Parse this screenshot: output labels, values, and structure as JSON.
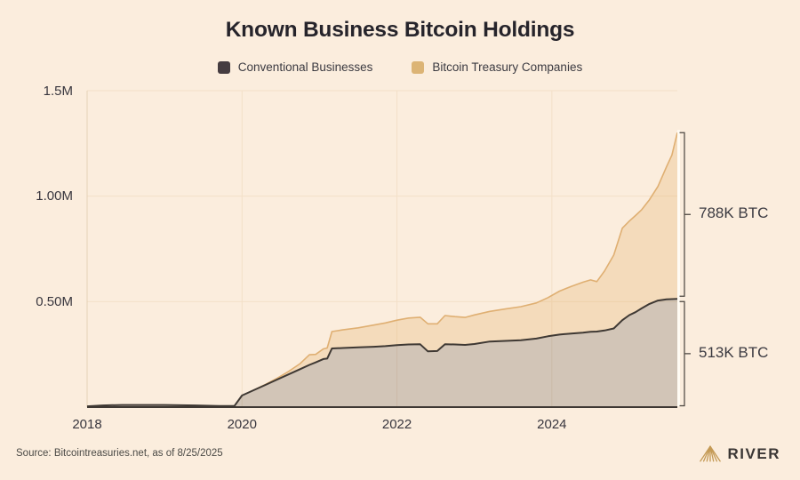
{
  "title": "Known Business Bitcoin Holdings",
  "legend": [
    {
      "label": "Conventional Businesses",
      "color": "#453C40"
    },
    {
      "label": "Bitcoin Treasury Companies",
      "color": "#DCB475"
    }
  ],
  "annotations": {
    "treasury": "788K BTC",
    "conventional": "513K BTC"
  },
  "footer": {
    "source": "Source: Bitcointreasuries.net, as of 8/25/2025",
    "brand": "RIVER"
  },
  "colors": {
    "background": "#FBEDDD",
    "gridline": "#F3E0C8",
    "axis_line": "#E6D2B6",
    "conventional_line": "#3E3833",
    "conventional_fill": "rgba(62,56,48,0.22)",
    "treasury_line": "#DFAF72",
    "treasury_fill": "rgba(228,172,100,0.28)",
    "bracket": "#4A443E",
    "brand_gold": "#C49A55",
    "title_text": "#26242B",
    "axis_text": "#38363E"
  },
  "chart_data": {
    "type": "area",
    "stacked": true,
    "title": "Known Business Bitcoin Holdings",
    "xlabel": "",
    "ylabel": "",
    "unit": "BTC",
    "values_unit": "thousand BTC",
    "x_range": [
      2018,
      2025.62
    ],
    "y_range_k": [
      0,
      1500
    ],
    "x_ticks": [
      2018,
      2020,
      2022,
      2024
    ],
    "x_tick_labels": [
      "2018",
      "2020",
      "2022",
      "2024"
    ],
    "y_ticks_k": [
      500,
      1000,
      1500
    ],
    "y_tick_labels": [
      "0.50M",
      "1.00M",
      "1.5M"
    ],
    "grid": true,
    "legend_position": "top",
    "x": [
      2018.0,
      2018.2,
      2018.45,
      2019.0,
      2019.4,
      2019.7,
      2019.9,
      2020.0,
      2020.15,
      2020.3,
      2020.45,
      2020.6,
      2020.75,
      2020.87,
      2020.95,
      2021.05,
      2021.1,
      2021.16,
      2021.3,
      2021.5,
      2021.7,
      2021.85,
      2022.0,
      2022.15,
      2022.3,
      2022.4,
      2022.52,
      2022.62,
      2022.75,
      2022.88,
      2023.0,
      2023.2,
      2023.4,
      2023.6,
      2023.8,
      2023.95,
      2024.1,
      2024.25,
      2024.4,
      2024.5,
      2024.58,
      2024.68,
      2024.8,
      2024.91,
      2025.0,
      2025.08,
      2025.16,
      2025.26,
      2025.37,
      2025.48,
      2025.55,
      2025.62
    ],
    "series": [
      {
        "name": "Conventional Businesses",
        "values_k": [
          4,
          8,
          10,
          10,
          8,
          5,
          5,
          55,
          80,
          105,
          130,
          155,
          180,
          200,
          212,
          228,
          230,
          278,
          280,
          283,
          286,
          289,
          294,
          297,
          298,
          264,
          266,
          298,
          297,
          295,
          299,
          311,
          314,
          317,
          325,
          336,
          344,
          349,
          353,
          357,
          358,
          363,
          373,
          412,
          436,
          450,
          468,
          489,
          505,
          511,
          512,
          513
        ]
      },
      {
        "name": "Bitcoin Treasury Companies",
        "values_k": [
          0,
          0,
          0,
          0,
          0,
          0,
          0,
          0,
          0,
          2,
          6,
          14,
          26,
          48,
          38,
          48,
          50,
          80,
          86,
          93,
          103,
          110,
          118,
          125,
          128,
          131,
          129,
          136,
          132,
          130,
          138,
          143,
          151,
          159,
          169,
          183,
          206,
          223,
          239,
          246,
          237,
          282,
          348,
          436,
          446,
          458,
          468,
          494,
          541,
          628,
          683,
          788
        ]
      }
    ],
    "end_brackets": [
      {
        "series": "Bitcoin Treasury Companies",
        "label": "788K BTC",
        "value_k": 788
      },
      {
        "series": "Conventional Businesses",
        "label": "513K BTC",
        "value_k": 513
      }
    ]
  }
}
